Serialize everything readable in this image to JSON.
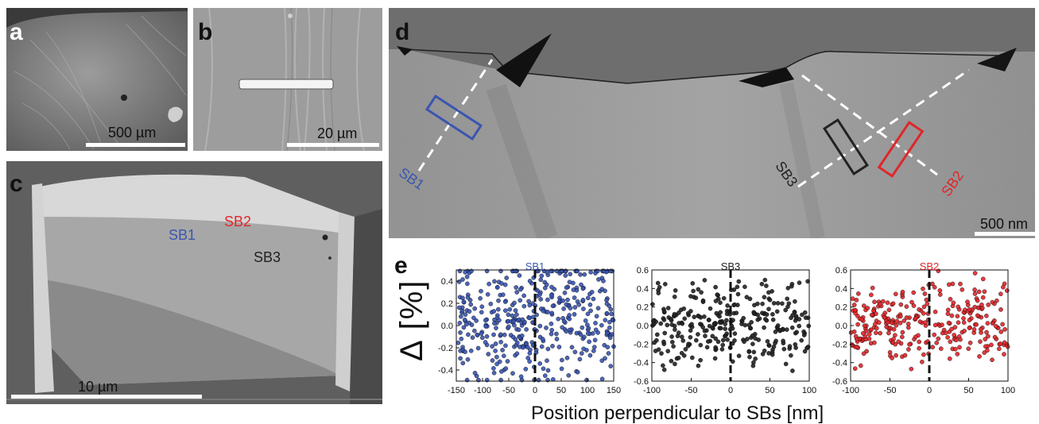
{
  "panels": {
    "a": {
      "letter": "a",
      "scale": "500 µm"
    },
    "b": {
      "letter": "b",
      "scale": "20 µm"
    },
    "c": {
      "letter": "c",
      "scale": "10 µm",
      "labels": {
        "sb1": "SB1",
        "sb2": "SB2",
        "sb3": "SB3"
      }
    },
    "d": {
      "letter": "d",
      "scale": "500 nm",
      "labels": {
        "sb1": "SB1",
        "sb2": "SB2",
        "sb3": "SB3"
      }
    },
    "e": {
      "letter": "e"
    }
  },
  "colors": {
    "sb1": "#3a55b0",
    "sb2": "#e0262a",
    "sb3": "#222222"
  },
  "shared_axes": {
    "ylabel": "Δ [%]",
    "xlabel": "Position perpendicular to SBs [nm]"
  },
  "chart_data": [
    {
      "type": "scatter",
      "title": "SB1",
      "series": [
        {
          "name": "SB1",
          "color": "#3a55b0",
          "n": 420,
          "seed": 11
        }
      ],
      "xlim": [
        -150,
        150
      ],
      "ylim": [
        -0.5,
        0.5
      ],
      "xticks": [
        -150,
        -100,
        -50,
        0,
        50,
        100,
        150
      ],
      "yticks": [
        -0.4,
        -0.2,
        0.0,
        0.2,
        0.4
      ],
      "vline": 0,
      "y_mean_left": 0.02,
      "y_mean_right": 0.1,
      "y_spread": 0.28
    },
    {
      "type": "scatter",
      "title": "SB3",
      "series": [
        {
          "name": "SB3",
          "color": "#222222",
          "n": 300,
          "seed": 23
        }
      ],
      "xlim": [
        -100,
        100
      ],
      "ylim": [
        -0.6,
        0.6
      ],
      "xticks": [
        -100,
        -50,
        0,
        50,
        100
      ],
      "yticks": [
        -0.6,
        -0.4,
        -0.2,
        0.0,
        0.2,
        0.4,
        0.6
      ],
      "vline": 0,
      "y_mean_left": 0.02,
      "y_mean_right": 0.0,
      "y_spread": 0.22
    },
    {
      "type": "scatter",
      "title": "SB2",
      "series": [
        {
          "name": "SB2",
          "color": "#e0262a",
          "n": 300,
          "seed": 37
        }
      ],
      "xlim": [
        -100,
        100
      ],
      "ylim": [
        -0.6,
        0.6
      ],
      "xticks": [
        -100,
        -50,
        0,
        50,
        100
      ],
      "yticks": [
        -0.6,
        -0.4,
        -0.2,
        0.0,
        0.2,
        0.4,
        0.6
      ],
      "vline": 0,
      "y_mean_left": -0.02,
      "y_mean_right": 0.05,
      "y_spread": 0.2
    }
  ]
}
